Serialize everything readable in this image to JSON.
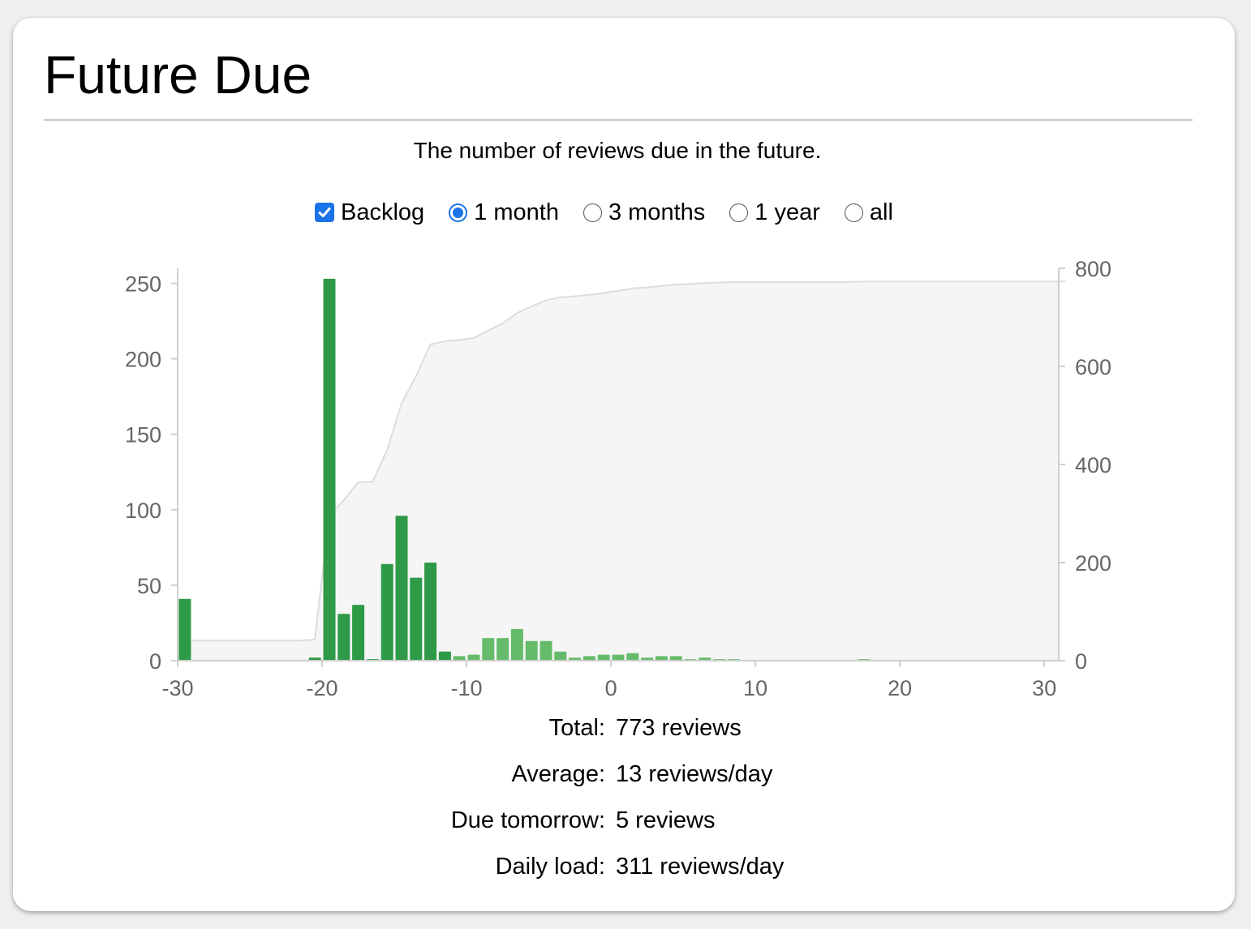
{
  "title": "Future Due",
  "subtitle": "The number of reviews due in the future.",
  "controls": {
    "backlog": {
      "label": "Backlog",
      "checked": true
    },
    "ranges": [
      {
        "label": "1 month",
        "selected": true
      },
      {
        "label": "3 months",
        "selected": false
      },
      {
        "label": "1 year",
        "selected": false
      },
      {
        "label": "all",
        "selected": false
      }
    ]
  },
  "chart_data": {
    "type": "bar",
    "xlim": [
      -30,
      31
    ],
    "x_ticks": [
      -30,
      -20,
      -10,
      0,
      10,
      20,
      30
    ],
    "ylim_left": [
      0,
      260
    ],
    "y_ticks_left": [
      0,
      50,
      100,
      150,
      200,
      250
    ],
    "ylim_right": [
      0,
      800
    ],
    "y_ticks_right": [
      0,
      200,
      400,
      600,
      800
    ],
    "bar_color_dark": "#2e9a47",
    "bar_color_light": "#66bb6a",
    "cumulative_fill": "#f5f5f5",
    "cumulative_stroke": "#dddddd",
    "bars": [
      {
        "x": -30,
        "y": 41
      },
      {
        "x": -21,
        "y": 2
      },
      {
        "x": -20,
        "y": 253
      },
      {
        "x": -19,
        "y": 31
      },
      {
        "x": -18,
        "y": 37
      },
      {
        "x": -17,
        "y": 1
      },
      {
        "x": -16,
        "y": 64
      },
      {
        "x": -15,
        "y": 96
      },
      {
        "x": -14,
        "y": 55
      },
      {
        "x": -13,
        "y": 65
      },
      {
        "x": -12,
        "y": 6
      },
      {
        "x": -11,
        "y": 3
      },
      {
        "x": -10,
        "y": 4
      },
      {
        "x": -9,
        "y": 15
      },
      {
        "x": -8,
        "y": 15
      },
      {
        "x": -7,
        "y": 21
      },
      {
        "x": -6,
        "y": 13
      },
      {
        "x": -5,
        "y": 13
      },
      {
        "x": -4,
        "y": 6
      },
      {
        "x": -3,
        "y": 2
      },
      {
        "x": -2,
        "y": 3
      },
      {
        "x": -1,
        "y": 4
      },
      {
        "x": 0,
        "y": 4
      },
      {
        "x": 1,
        "y": 5
      },
      {
        "x": 2,
        "y": 2
      },
      {
        "x": 3,
        "y": 3
      },
      {
        "x": 4,
        "y": 3
      },
      {
        "x": 5,
        "y": 1
      },
      {
        "x": 6,
        "y": 2
      },
      {
        "x": 7,
        "y": 1
      },
      {
        "x": 8,
        "y": 1
      },
      {
        "x": 17,
        "y": 1
      }
    ]
  },
  "stats": [
    {
      "label": "Total:",
      "value": "773 reviews"
    },
    {
      "label": "Average:",
      "value": "13 reviews/day"
    },
    {
      "label": "Due tomorrow:",
      "value": "5 reviews"
    },
    {
      "label": "Daily load:",
      "value": "311 reviews/day"
    }
  ]
}
